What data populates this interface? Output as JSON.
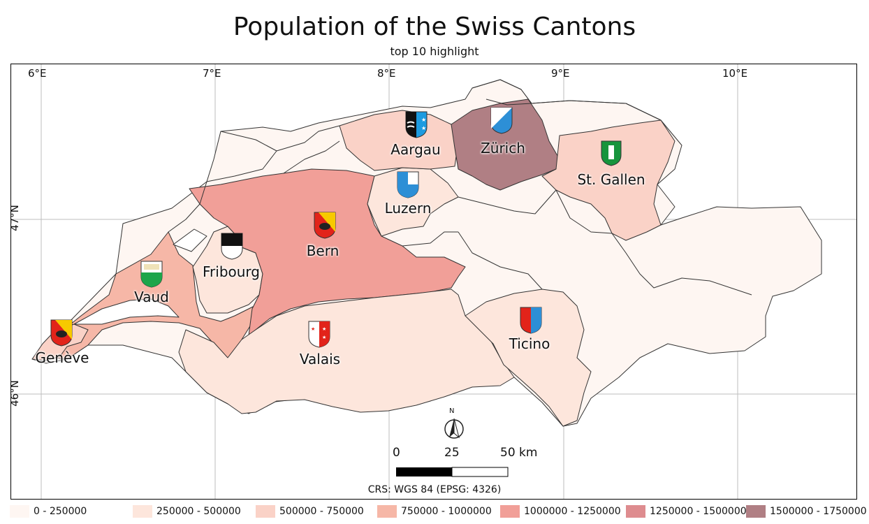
{
  "title": "Population of the Swiss Cantons",
  "subtitle": "top 10 highlight",
  "grid": {
    "lon_labels": [
      "6°E",
      "7°E",
      "8°E",
      "9°E",
      "10°E"
    ],
    "lat_labels": [
      "47°N",
      "46°N"
    ]
  },
  "cantons": [
    {
      "name": "Zürich",
      "color": "#b07f84"
    },
    {
      "name": "Bern",
      "color": "#f19f98"
    },
    {
      "name": "Vaud",
      "color": "#f6b7a7"
    },
    {
      "name": "Aargau",
      "color": "#fad2c7"
    },
    {
      "name": "St. Gallen",
      "color": "#fad2c7"
    },
    {
      "name": "Genève",
      "color": "#fad2c7"
    },
    {
      "name": "Luzern",
      "color": "#fde6dc"
    },
    {
      "name": "Ticino",
      "color": "#fde6dc"
    },
    {
      "name": "Valais",
      "color": "#fde6dc"
    },
    {
      "name": "Fribourg",
      "color": "#fde6dc"
    }
  ],
  "scale_bar": {
    "labels": [
      "0",
      "25",
      "50 km"
    ]
  },
  "north_arrow": {
    "label": "N"
  },
  "crs": "CRS: WGS 84 (EPSG: 4326)",
  "legend": [
    {
      "label": "0 - 250000",
      "color": "#fef6f2"
    },
    {
      "label": "250000 - 500000",
      "color": "#fde6dc"
    },
    {
      "label": "500000 - 750000",
      "color": "#fad2c7"
    },
    {
      "label": "750000 - 1000000",
      "color": "#f6b7a7"
    },
    {
      "label": "1000000 - 1250000",
      "color": "#f19f98"
    },
    {
      "label": "1250000 - 1500000",
      "color": "#de8c8f"
    },
    {
      "label": "1500000 - 1750000",
      "color": "#b07f84"
    }
  ]
}
